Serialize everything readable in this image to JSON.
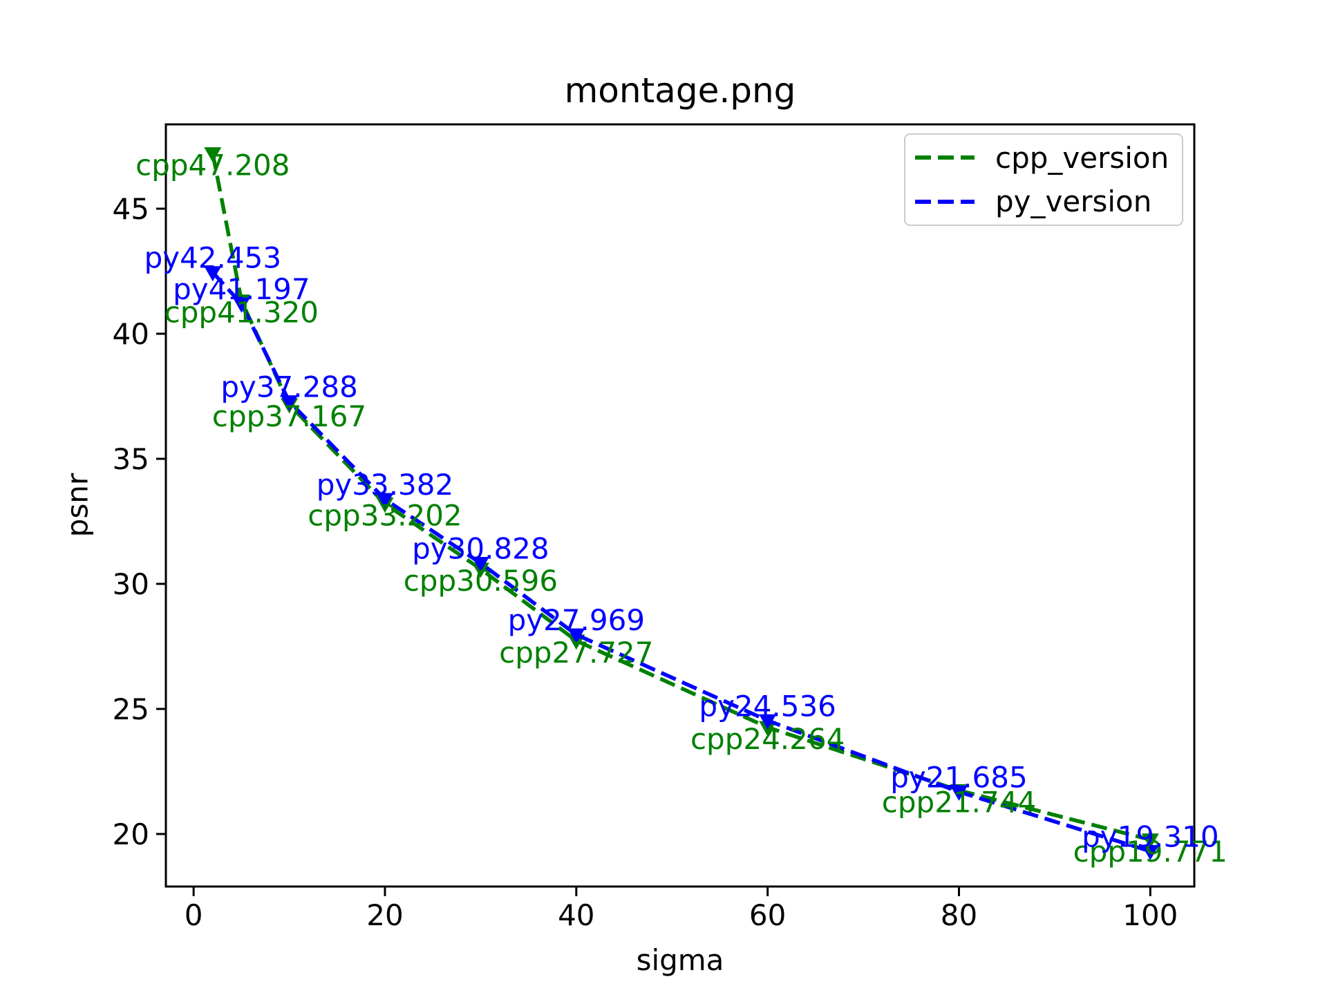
{
  "chart_data": {
    "type": "line",
    "title": "montage.png",
    "xlabel": "sigma",
    "ylabel": "psnr",
    "x": [
      2,
      5,
      10,
      20,
      30,
      40,
      60,
      80,
      100
    ],
    "series": [
      {
        "name": "cpp_version",
        "label_prefix": "cpp",
        "color": "#008000",
        "linestyle": "dashed",
        "marker": "triangle-down",
        "label_side": "below",
        "values": [
          47.208,
          41.32,
          37.167,
          33.202,
          30.596,
          27.727,
          24.264,
          21.744,
          19.771
        ]
      },
      {
        "name": "py_version",
        "label_prefix": "py",
        "color": "#0000ff",
        "linestyle": "dashed",
        "marker": "triangle-down",
        "label_side": "above",
        "values": [
          42.453,
          41.197,
          37.288,
          33.382,
          30.828,
          27.969,
          24.536,
          21.685,
          19.31
        ]
      }
    ],
    "xticks": [
      0,
      20,
      40,
      60,
      80,
      100
    ],
    "yticks": [
      20,
      25,
      30,
      35,
      40,
      45
    ],
    "xlim": [
      -2.9,
      104.6
    ],
    "ylim": [
      17.9,
      48.37
    ],
    "grid": false,
    "legend_position": "upper right",
    "axis_color": "#000000",
    "text_color": "#000000",
    "background_color": "#ffffff"
  }
}
